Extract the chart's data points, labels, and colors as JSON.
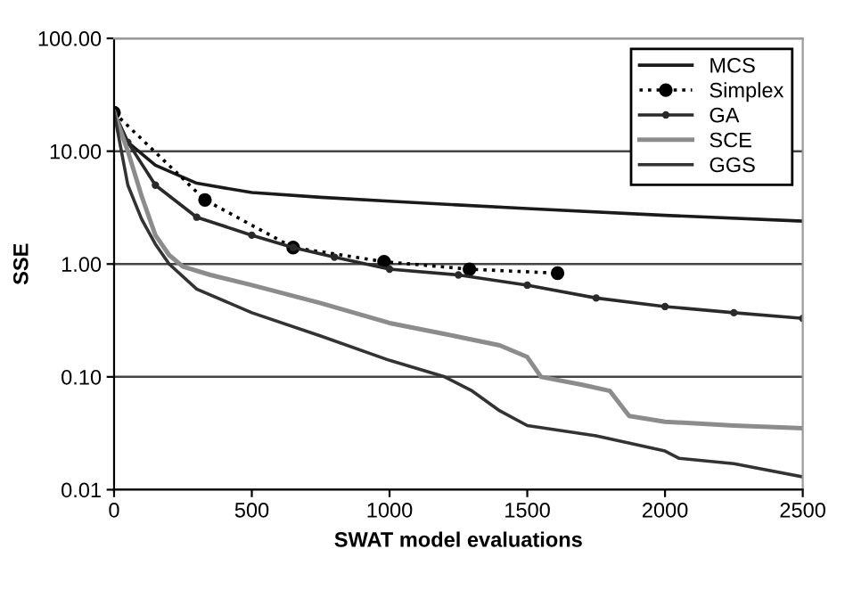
{
  "chart_data": {
    "type": "line",
    "xlabel": "SWAT model evaluations",
    "ylabel": "SSE",
    "log": "y",
    "xlim": [
      0,
      2500
    ],
    "xticks": [
      0,
      500,
      1000,
      1500,
      2000,
      2500
    ],
    "ylim": [
      0.01,
      100
    ],
    "yticks": [
      {
        "value": 0.01,
        "label": "0.01"
      },
      {
        "value": 0.1,
        "label": "0.10"
      },
      {
        "value": 1,
        "label": "1.00"
      },
      {
        "value": 10,
        "label": "10.00"
      },
      {
        "value": 100,
        "label": "100.00"
      }
    ],
    "grid": "y",
    "legend": "top right",
    "series": [
      {
        "name": "MCS",
        "color": "#1a1a1a",
        "line_style": "solid",
        "marker": "none",
        "x": [
          0,
          50,
          150,
          300,
          500,
          750,
          1000,
          1500,
          2000,
          2500
        ],
        "values": [
          22,
          12,
          7.5,
          5.2,
          4.3,
          3.9,
          3.6,
          3.1,
          2.7,
          2.4
        ]
      },
      {
        "name": "Simplex",
        "color": "#000000",
        "line_style": "dotted",
        "marker": "circle",
        "x": [
          0,
          330,
          650,
          980,
          1290,
          1610
        ],
        "values": [
          22,
          3.7,
          1.4,
          1.05,
          0.9,
          0.83
        ]
      },
      {
        "name": "GA",
        "color": "#2a2a2a",
        "line_style": "solid",
        "marker": "circle",
        "x": [
          0,
          50,
          150,
          300,
          500,
          650,
          800,
          1000,
          1250,
          1500,
          1750,
          2000,
          2250,
          2500
        ],
        "values": [
          22,
          12,
          5,
          2.6,
          1.8,
          1.4,
          1.15,
          0.9,
          0.8,
          0.65,
          0.5,
          0.42,
          0.37,
          0.33
        ]
      },
      {
        "name": "SCE",
        "color": "#8c8c8c",
        "line_style": "solid",
        "marker": "none",
        "x": [
          0,
          50,
          100,
          150,
          200,
          250,
          350,
          500,
          750,
          1000,
          1200,
          1400,
          1500,
          1550,
          1700,
          1800,
          1870,
          2000,
          2250,
          2500
        ],
        "values": [
          22,
          10,
          4,
          1.8,
          1.2,
          0.95,
          0.8,
          0.65,
          0.45,
          0.3,
          0.24,
          0.19,
          0.15,
          0.1,
          0.085,
          0.075,
          0.045,
          0.04,
          0.037,
          0.035
        ]
      },
      {
        "name": "GGS",
        "color": "#333333",
        "line_style": "solid",
        "marker": "none",
        "x": [
          0,
          50,
          100,
          150,
          200,
          300,
          500,
          750,
          1000,
          1200,
          1300,
          1400,
          1500,
          1750,
          2000,
          2050,
          2250,
          2500
        ],
        "values": [
          22,
          5,
          2.5,
          1.5,
          1.0,
          0.6,
          0.37,
          0.23,
          0.14,
          0.1,
          0.075,
          0.05,
          0.037,
          0.03,
          0.022,
          0.019,
          0.017,
          0.013
        ]
      }
    ]
  }
}
